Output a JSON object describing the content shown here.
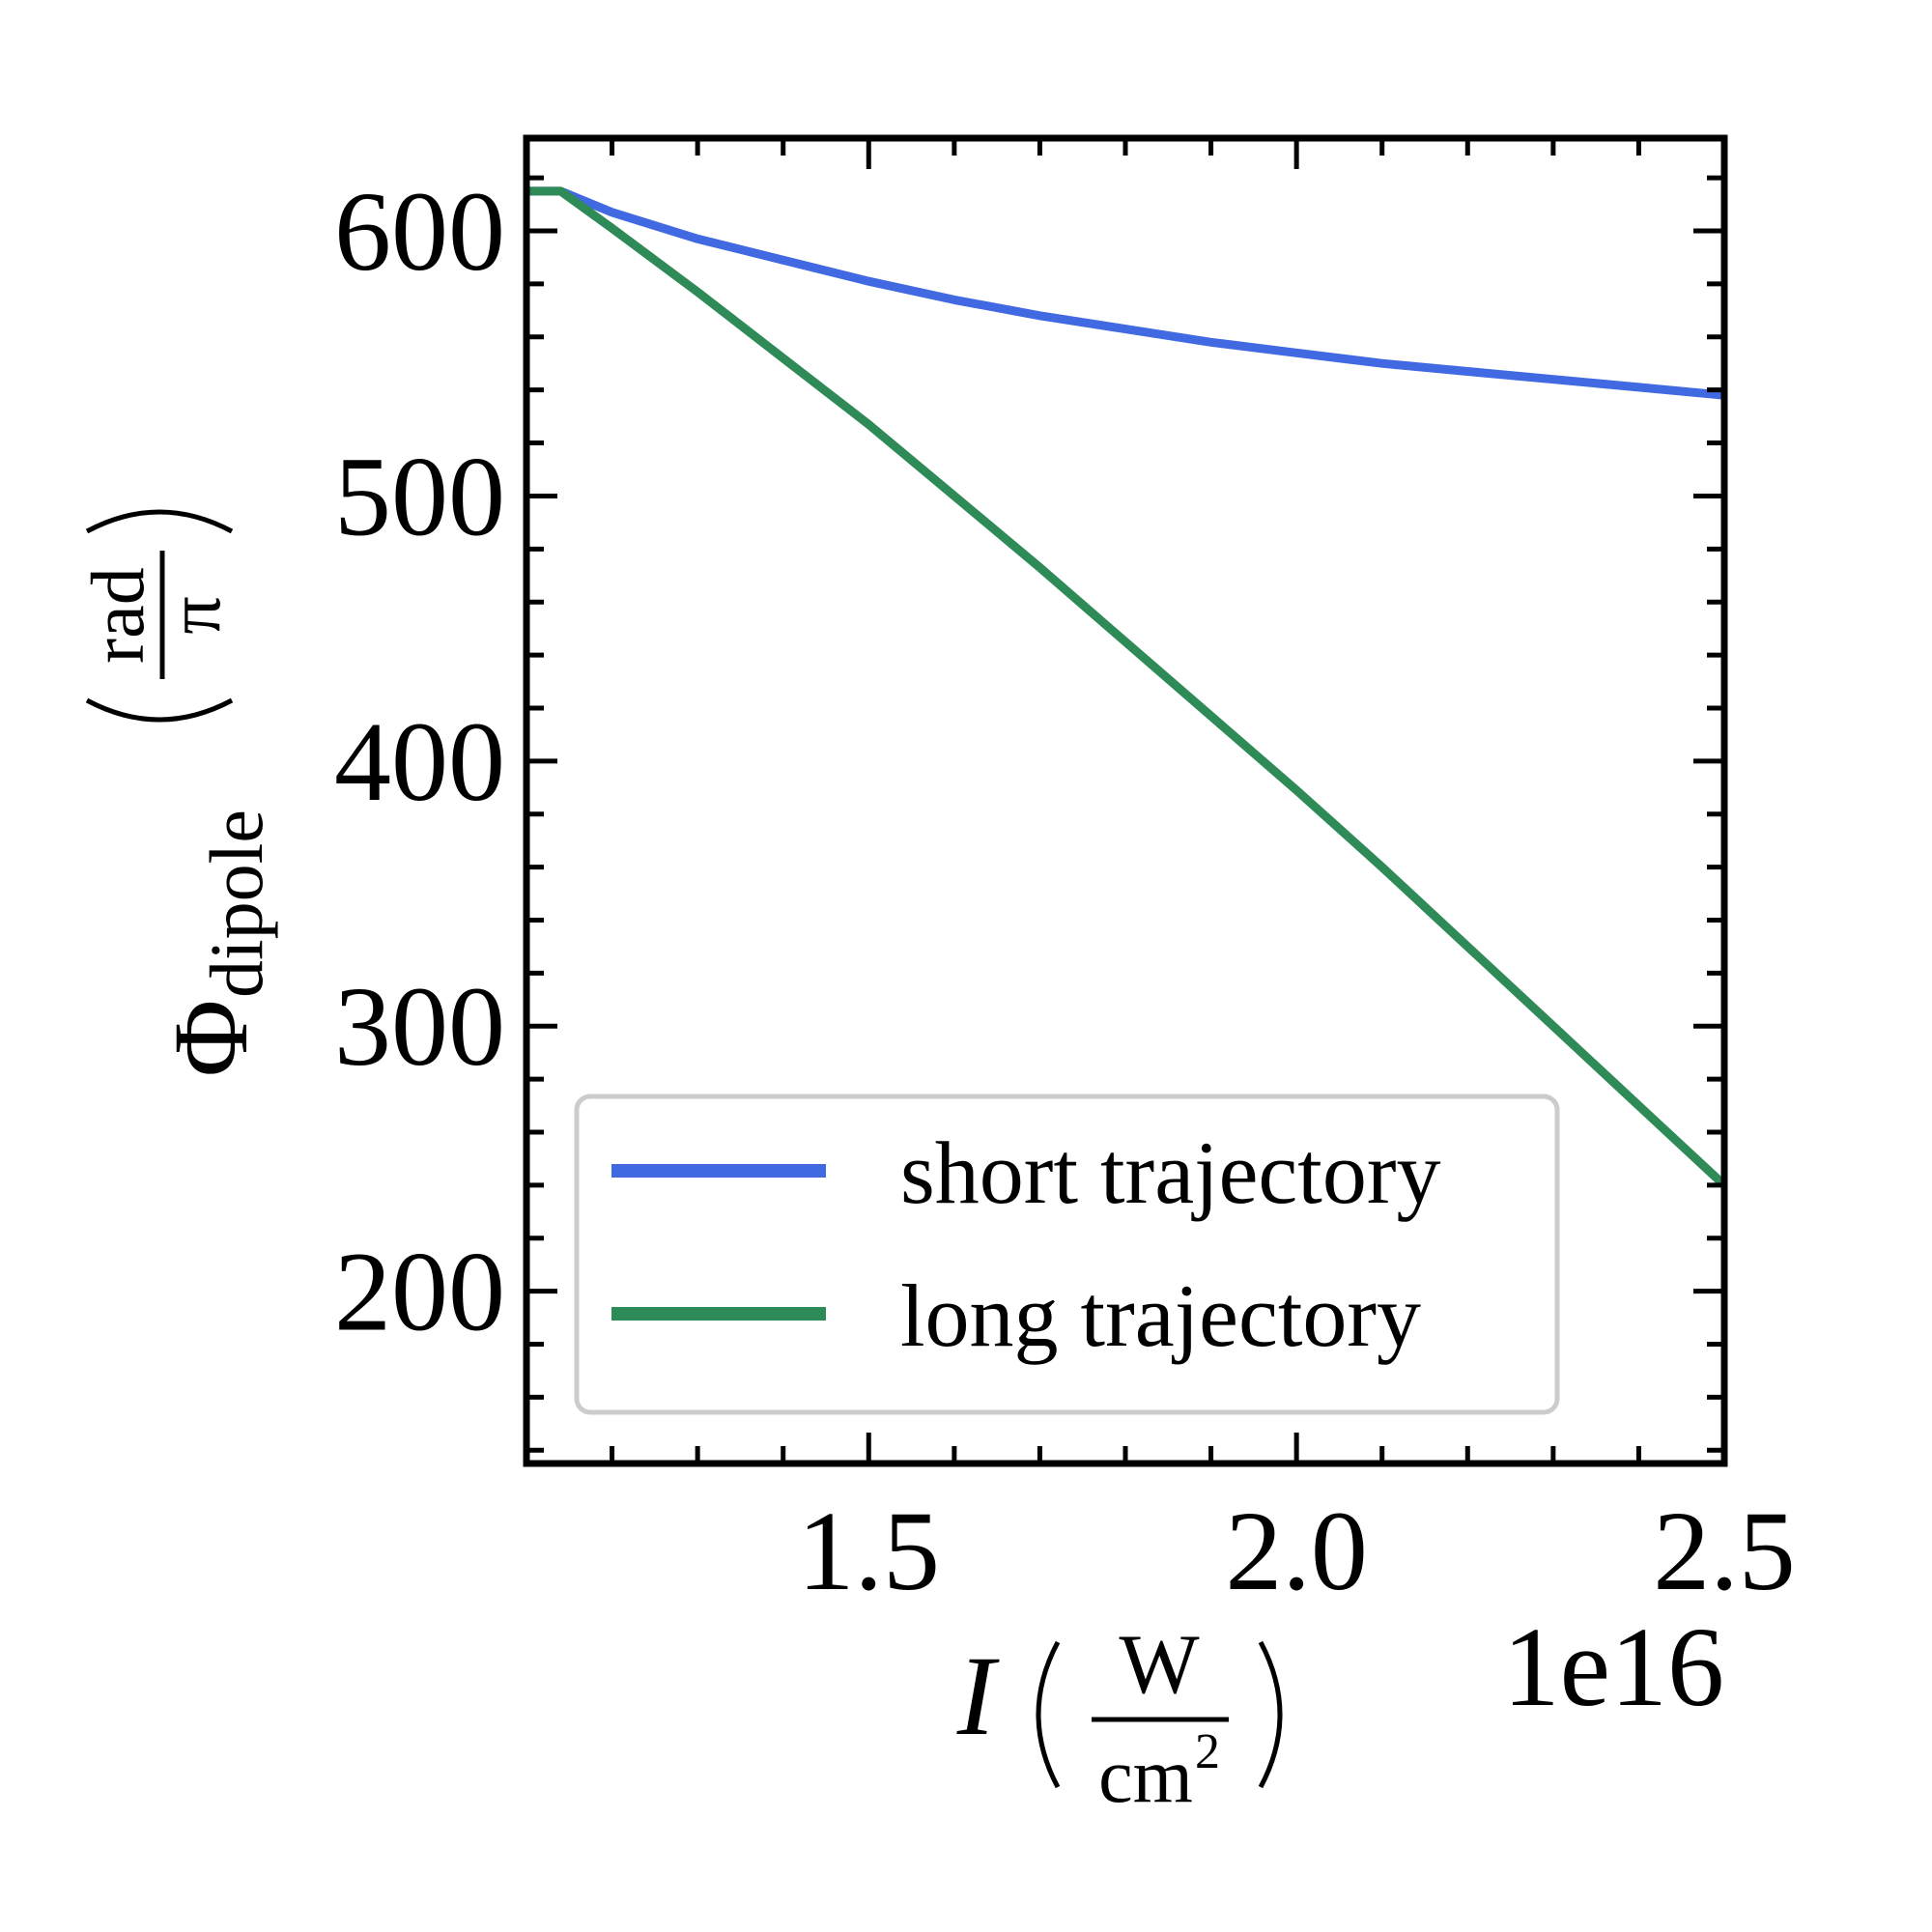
{
  "chart_data": {
    "type": "line",
    "xlabel": {
      "symbol": "I",
      "numerator": "W",
      "denominator": "cm",
      "denominator_exponent": "2"
    },
    "ylabel": {
      "symbol": "Φ",
      "subscript": "dipole",
      "numerator": "rad",
      "denominator": "π"
    },
    "x_offset_label": "1e16",
    "xlim": [
      1.1,
      2.5
    ],
    "ylim": [
      135,
      635
    ],
    "x_tick_labels": [
      "1.5",
      "2.0",
      "2.5"
    ],
    "y_tick_labels": [
      "200",
      "300",
      "400",
      "500",
      "600"
    ],
    "legend_position": "lower-left",
    "series": [
      {
        "name": "short trajectory",
        "color": "#4169e1",
        "x": [
          1.1,
          1.14,
          1.2,
          1.3,
          1.4,
          1.5,
          1.6,
          1.7,
          1.8,
          1.9,
          2.0,
          2.1,
          2.2,
          2.3,
          2.4,
          2.5
        ],
        "y": [
          615,
          615,
          607,
          597,
          589,
          581,
          574,
          568,
          563,
          558,
          554,
          550,
          547,
          544,
          541,
          538
        ]
      },
      {
        "name": "long trajectory",
        "color": "#2e8b57",
        "x": [
          1.1,
          1.14,
          1.2,
          1.3,
          1.4,
          1.5,
          1.6,
          1.7,
          1.8,
          1.9,
          2.0,
          2.1,
          2.2,
          2.3,
          2.4,
          2.5
        ],
        "y": [
          615,
          615,
          601,
          577,
          552,
          527,
          500,
          473,
          445,
          417,
          389,
          360,
          330,
          300,
          270,
          240
        ]
      }
    ]
  }
}
